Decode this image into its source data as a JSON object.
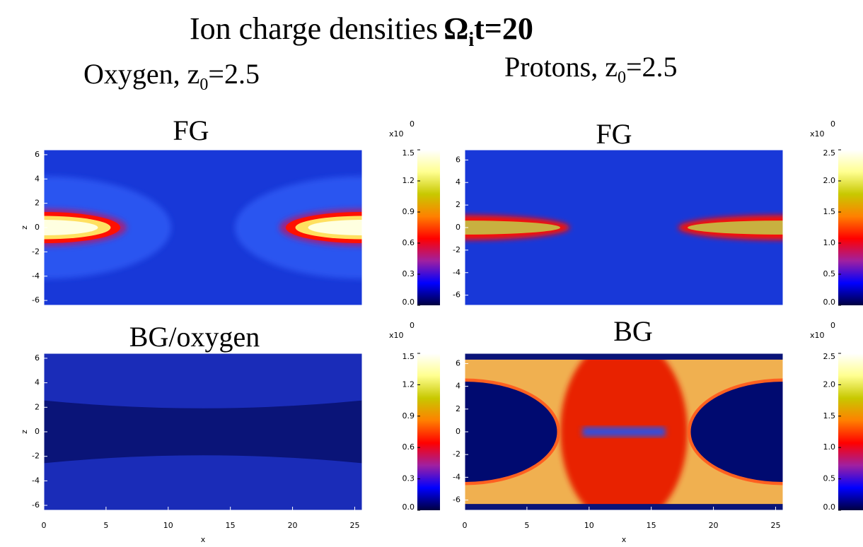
{
  "figure": {
    "title": "Ion charge densities",
    "title_symbol": "Ω",
    "title_subscript": "i",
    "title_suffix": "t=20",
    "columns": [
      {
        "label": "Oxygen, z",
        "subscript": "0",
        "suffix": "=2.5"
      },
      {
        "label": "Protons, z",
        "subscript": "0",
        "suffix": "=2.5"
      }
    ]
  },
  "chart_data": [
    {
      "type": "heatmap",
      "title": "FG",
      "ylabel": "z",
      "xlim": [
        0,
        25.6
      ],
      "ylim": [
        -6.4,
        6.4
      ],
      "yticks": [
        -6,
        -4,
        -2,
        0,
        2,
        4,
        6
      ],
      "colorbar_lim": [
        0,
        1.5
      ],
      "colorbar_ticks": [
        {
          "value": 0,
          "label": "0.0"
        },
        0.3,
        0.6,
        0.9,
        1.2,
        1.5
      ],
      "colorbar_label": "x10",
      "colorbar_exponent": "0",
      "colormap": [
        "#000040",
        "#0000ff",
        "#a020a0",
        "#ff0000",
        "#ff8000",
        "#c8c800",
        "#ffff90",
        "#ffffff"
      ]
    },
    {
      "type": "heatmap",
      "title": "BG/oxygen",
      "ylabel": "z",
      "xlabel": "x",
      "xlim": [
        0,
        25.6
      ],
      "ylim": [
        -6.4,
        6.4
      ],
      "xticks": [
        0,
        5,
        10,
        15,
        20,
        25
      ],
      "yticks": [
        -6,
        -4,
        -2,
        0,
        2,
        4,
        6
      ],
      "colorbar_lim": [
        0,
        1.5
      ],
      "colorbar_ticks": [
        {
          "value": 0,
          "label": "0.0"
        },
        0.3,
        0.6,
        0.9,
        1.2,
        1.5
      ],
      "colorbar_label": "x10",
      "colorbar_exponent": "0",
      "colormap": [
        "#000040",
        "#0000ff",
        "#a020a0",
        "#ff0000",
        "#ff8000",
        "#c8c800",
        "#ffff90",
        "#ffffff"
      ]
    },
    {
      "type": "heatmap",
      "title": "FG",
      "xlim": [
        0,
        25.6
      ],
      "ylim": [
        -6.9,
        6.9
      ],
      "yticks": [
        -6,
        -4,
        -2,
        0,
        2,
        4,
        6
      ],
      "colorbar_lim": [
        0,
        2.5
      ],
      "colorbar_ticks": [
        {
          "value": 0,
          "label": "0.0"
        },
        0.5,
        {
          "value": 1,
          "label": "1.0"
        },
        1.5,
        {
          "value": 2,
          "label": "2.0"
        },
        2.5
      ],
      "colorbar_label": "x10",
      "colorbar_exponent": "0",
      "colormap": [
        "#000040",
        "#0000ff",
        "#a020a0",
        "#ff0000",
        "#ff8000",
        "#c8c800",
        "#ffff90",
        "#ffffff"
      ]
    },
    {
      "type": "heatmap",
      "title": "BG",
      "xlabel": "x",
      "xlim": [
        0,
        25.6
      ],
      "ylim": [
        -6.9,
        6.9
      ],
      "xticks": [
        0,
        5,
        10,
        15,
        20,
        25
      ],
      "yticks": [
        -6,
        -4,
        -2,
        0,
        2,
        4,
        6
      ],
      "colorbar_lim": [
        0,
        2.5
      ],
      "colorbar_ticks": [
        {
          "value": 0,
          "label": "0.0"
        },
        0.5,
        {
          "value": 1,
          "label": "1.0"
        },
        1.5,
        {
          "value": 2,
          "label": "2.0"
        },
        2.5
      ],
      "colorbar_label": "x10",
      "colorbar_exponent": "0",
      "colormap": [
        "#000040",
        "#0000ff",
        "#a020a0",
        "#ff0000",
        "#ff8000",
        "#c8c800",
        "#ffff90",
        "#ffffff"
      ]
    }
  ]
}
